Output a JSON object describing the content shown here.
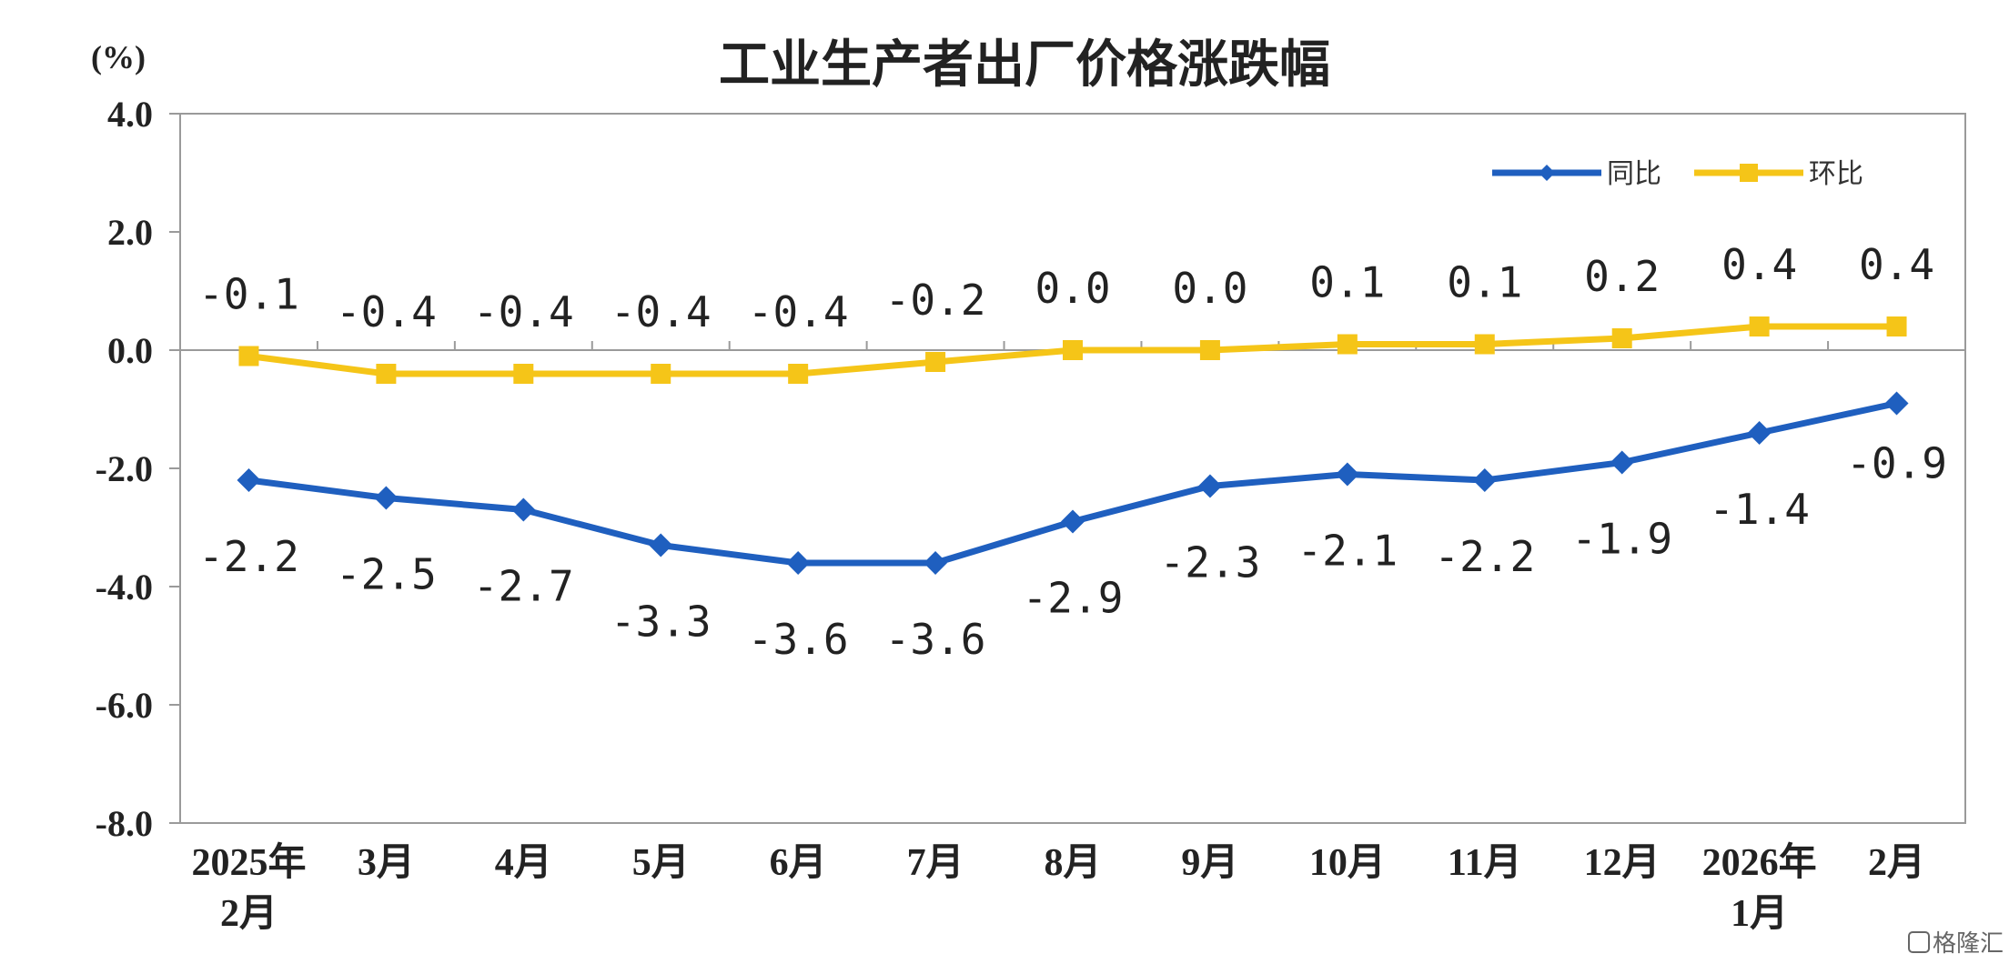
{
  "chart_data": {
    "type": "line",
    "title": "工业生产者出厂价格涨跌幅",
    "unit_label": "(%)",
    "ylim": [
      -8.0,
      4.0
    ],
    "yticks": [
      "4.0",
      "2.0",
      "0.0",
      "-2.0",
      "-4.0",
      "-6.0",
      "-8.0"
    ],
    "ytick_values": [
      4,
      2,
      0,
      -2,
      -4,
      -6,
      -8
    ],
    "categories": [
      [
        "2025年",
        "2月"
      ],
      [
        "3月"
      ],
      [
        "4月"
      ],
      [
        "5月"
      ],
      [
        "6月"
      ],
      [
        "7月"
      ],
      [
        "8月"
      ],
      [
        "9月"
      ],
      [
        "10月"
      ],
      [
        "11月"
      ],
      [
        "12月"
      ],
      [
        "2026年",
        "1月"
      ],
      [
        "2月"
      ]
    ],
    "series": [
      {
        "name": "同比",
        "color": "#1f5fbf",
        "marker": "diamond",
        "values": [
          -2.2,
          -2.5,
          -2.7,
          -3.3,
          -3.6,
          -3.6,
          -2.9,
          -2.3,
          -2.1,
          -2.2,
          -1.9,
          -1.4,
          -0.9
        ],
        "labels": [
          "-2.2",
          "-2.5",
          "-2.7",
          "-3.3",
          "-3.6",
          "-3.6",
          "-2.9",
          "-2.3",
          "-2.1",
          "-2.2",
          "-1.9",
          "-1.4",
          "-0.9"
        ]
      },
      {
        "name": "环比",
        "color": "#f5c518",
        "marker": "square",
        "values": [
          -0.1,
          -0.4,
          -0.4,
          -0.4,
          -0.4,
          -0.2,
          0.0,
          0.0,
          0.1,
          0.1,
          0.2,
          0.4,
          0.4
        ],
        "labels": [
          "-0.1",
          "-0.4",
          "-0.4",
          "-0.4",
          "-0.4",
          "-0.2",
          "0.0",
          "0.0",
          "0.1",
          "0.1",
          "0.2",
          "0.4",
          "0.4"
        ]
      }
    ],
    "legend_position": "top-right",
    "grid": false
  },
  "watermark": "格隆汇"
}
